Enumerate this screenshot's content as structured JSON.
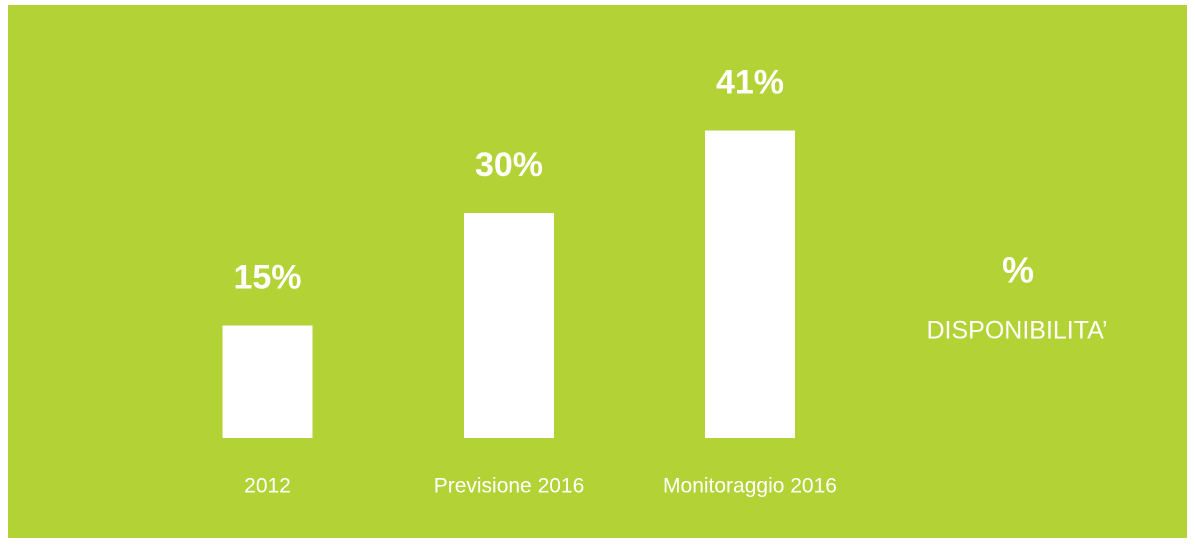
{
  "chart_data": {
    "type": "bar",
    "categories": [
      "2012",
      "Previsione 2016",
      "Monitoraggio 2016"
    ],
    "values": [
      15,
      30,
      41
    ],
    "value_labels": [
      "15%",
      "30%",
      "41%"
    ],
    "color": "#ffffff",
    "background": "#b2d235",
    "annotations": [
      "%",
      "DISPONIBILITA’"
    ]
  }
}
